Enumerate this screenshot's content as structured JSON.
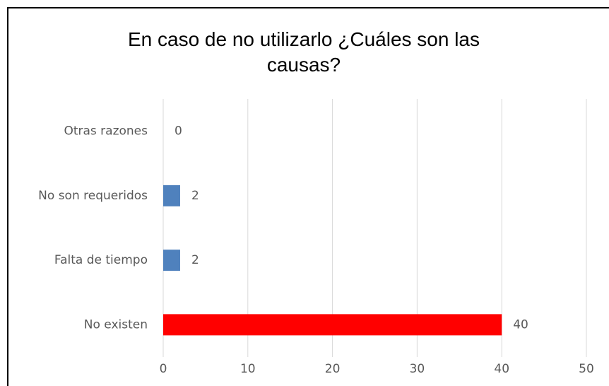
{
  "chart_data": {
    "type": "barh",
    "title": "En caso de no utilizarlo ¿Cuáles son las causas?",
    "categories": [
      "Otras razones",
      "No son requeridos",
      "Falta de tiempo",
      "No existen"
    ],
    "values": [
      0,
      2,
      2,
      40
    ],
    "colors": [
      "#4f81bd",
      "#4f81bd",
      "#4f81bd",
      "#ff0000"
    ],
    "xlim": [
      0,
      50
    ],
    "xticks": [
      0,
      10,
      20,
      30,
      40,
      50
    ],
    "grid": true
  }
}
